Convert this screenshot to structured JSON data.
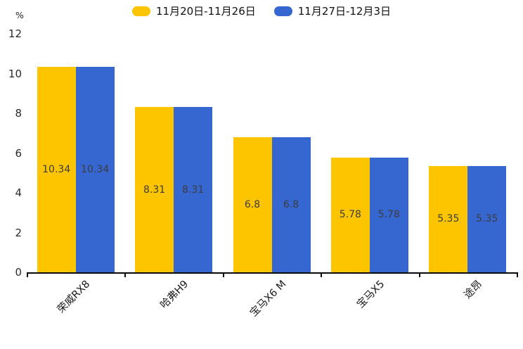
{
  "chart_data": {
    "type": "bar",
    "title": "",
    "categories": [
      "荣威RX8",
      "哈弗H9",
      "宝马X6 M",
      "宝马X5",
      "途昂"
    ],
    "series": [
      {
        "name": "11月20日-11月26日",
        "color": "#FDC500",
        "values": [
          10.34,
          8.31,
          6.8,
          5.78,
          5.35
        ]
      },
      {
        "name": "11月27日-12月3日",
        "color": "#3667D1",
        "values": [
          10.34,
          8.31,
          6.8,
          5.78,
          5.35
        ]
      }
    ],
    "value_labels": [
      [
        "10.34",
        "8.31",
        "6.8",
        "5.78",
        "5.35"
      ],
      [
        "10.34",
        "8.31",
        "6.8",
        "5.78",
        "5.35"
      ]
    ],
    "ylabel": "%",
    "ytick_labels": [
      "0",
      "2",
      "4",
      "6",
      "8",
      "10",
      "12"
    ],
    "yticks": [
      0,
      2,
      4,
      6,
      8,
      10,
      12
    ],
    "ylim": [
      0,
      12
    ],
    "grid": false,
    "legend_position": "top",
    "bar_value_text_color": "#3c3c3c",
    "axis_color": "#0a0a0a"
  }
}
